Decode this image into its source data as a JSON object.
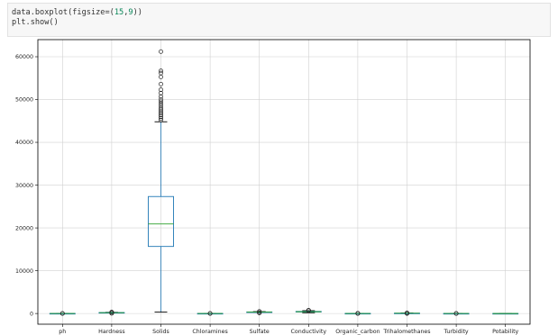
{
  "code": {
    "line1_a": "data.boxplot(figsize=(",
    "line1_n1": "15",
    "line1_sep": ",",
    "line1_n2": "9",
    "line1_b": "))",
    "line2": "plt.show()"
  },
  "colors": {
    "box": "#1f77b4",
    "median": "#2ca02c",
    "whisker": "#1f77b4",
    "grid": "#d0d0d0",
    "axes": "#000000"
  },
  "chart_data": {
    "type": "boxplot",
    "title": "",
    "xlabel": "",
    "ylabel": "",
    "ylim": [
      -2500,
      64000
    ],
    "yticks": [
      0,
      10000,
      20000,
      30000,
      40000,
      50000,
      60000
    ],
    "grid": true,
    "legend": "none",
    "categories": [
      "ph",
      "Hardness",
      "Solids",
      "Chloramines",
      "Sulfate",
      "Conductivity",
      "Organic_carbon",
      "Trihalomethanes",
      "Turbidity",
      "Potability"
    ],
    "tick_labels": [
      "ph",
      "Hardness",
      "Solids",
      "Chloramines",
      "Sulfate",
      "Conductivity",
      "Organic_carbon",
      "Trihalomethanes",
      "Turbidity",
      "Potability"
    ],
    "boxes": [
      {
        "q1": 6,
        "median": 7,
        "q3": 8,
        "whislo": 3,
        "whishi": 11,
        "fliers": [
          0,
          14
        ]
      },
      {
        "q1": 176,
        "median": 197,
        "q3": 217,
        "whislo": 117,
        "whishi": 277,
        "fliers": [
          47,
          75,
          318,
          323
        ]
      },
      {
        "q1": 15667,
        "median": 20928,
        "q3": 27333,
        "whislo": 320,
        "whishi": 44800,
        "fliers": [
          45200,
          45600,
          46000,
          46400,
          46800,
          47200,
          47600,
          48000,
          48500,
          49000,
          49500,
          50000,
          50700,
          51500,
          52300,
          53600,
          55300,
          56200,
          56700,
          61200
        ]
      },
      {
        "q1": 6,
        "median": 7,
        "q3": 8,
        "whislo": 3,
        "whishi": 11,
        "fliers": [
          0.35,
          13
        ]
      },
      {
        "q1": 308,
        "median": 333,
        "q3": 360,
        "whislo": 230,
        "whishi": 438,
        "fliers": [
          129,
          180,
          460,
          481
        ]
      },
      {
        "q1": 366,
        "median": 422,
        "q3": 482,
        "whislo": 181,
        "whishi": 656,
        "fliers": [
          690,
          710,
          753
        ]
      },
      {
        "q1": 12,
        "median": 14,
        "q3": 17,
        "whislo": 5,
        "whishi": 24,
        "fliers": [
          2,
          27,
          28
        ]
      },
      {
        "q1": 56,
        "median": 67,
        "q3": 77,
        "whislo": 25,
        "whishi": 108,
        "fliers": [
          0.7,
          114,
          124
        ]
      },
      {
        "q1": 3.4,
        "median": 4,
        "q3": 4.5,
        "whislo": 1.9,
        "whishi": 6.1,
        "fliers": [
          1.45,
          6.7
        ]
      },
      {
        "q1": 0,
        "median": 0,
        "q3": 1,
        "whislo": 0,
        "whishi": 1,
        "fliers": []
      }
    ]
  }
}
